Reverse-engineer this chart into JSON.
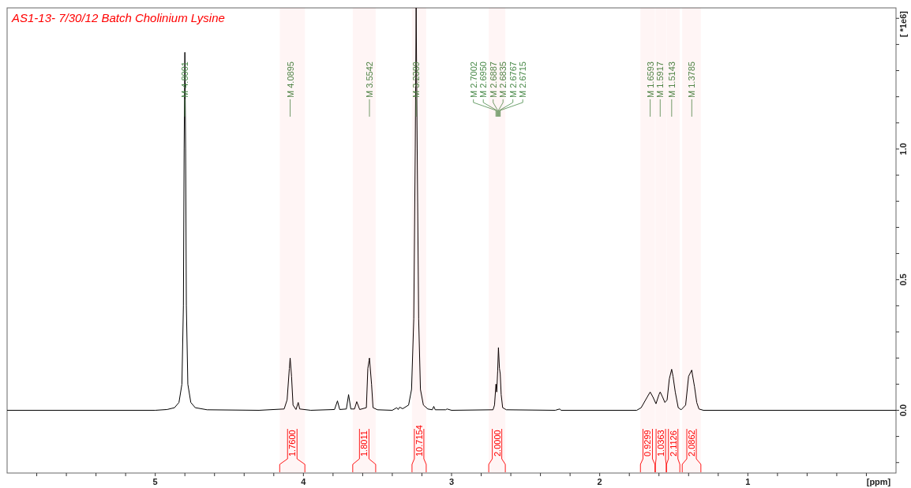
{
  "chart_data": {
    "type": "line",
    "title": "AS1-13-  7/30/12 Batch Cholinium Lysine",
    "xlabel": "[ppm]",
    "ylabel": "[ *1e6]",
    "xlim": [
      6.0,
      0.0
    ],
    "ylim": [
      -0.24,
      1.54
    ],
    "xticks": [
      {
        "value": 5.8,
        "label": null
      },
      {
        "value": 5.6,
        "label": null
      },
      {
        "value": 5.4,
        "label": null
      },
      {
        "value": 5.2,
        "label": null
      },
      5,
      {
        "value": 4.8,
        "label": null
      },
      {
        "value": 4.6,
        "label": null
      },
      {
        "value": 4.4,
        "label": null
      },
      {
        "value": 4.2,
        "label": null
      },
      4,
      {
        "value": 3.8,
        "label": null
      },
      {
        "value": 3.6,
        "label": null
      },
      {
        "value": 3.4,
        "label": null
      },
      {
        "value": 3.2,
        "label": null
      },
      3,
      {
        "value": 2.8,
        "label": null
      },
      {
        "value": 2.6,
        "label": null
      },
      {
        "value": 2.4,
        "label": null
      },
      {
        "value": 2.2,
        "label": null
      },
      2,
      {
        "value": 1.8,
        "label": null
      },
      {
        "value": 1.6,
        "label": null
      },
      {
        "value": 1.4,
        "label": null
      },
      {
        "value": 1.2,
        "label": null
      },
      1,
      {
        "value": 0.8,
        "label": null
      },
      {
        "value": 0.6,
        "label": null
      },
      {
        "value": 0.4,
        "label": null
      },
      {
        "value": 0.2,
        "label": null
      }
    ],
    "yticks": [
      {
        "value": -0.2,
        "label": null
      },
      {
        "value": -0.1,
        "label": null
      },
      {
        "value": 0,
        "label": "0.0"
      },
      {
        "value": 0.1,
        "label": null
      },
      {
        "value": 0.2,
        "label": null
      },
      {
        "value": 0.3,
        "label": null
      },
      {
        "value": 0.4,
        "label": null
      },
      {
        "value": 0.5,
        "label": "0.5"
      },
      {
        "value": 0.6,
        "label": null
      },
      {
        "value": 0.7,
        "label": null
      },
      {
        "value": 0.8,
        "label": null
      },
      {
        "value": 0.9,
        "label": null
      },
      {
        "value": 1.0,
        "label": "1.0"
      },
      {
        "value": 1.1,
        "label": null
      },
      {
        "value": 1.2,
        "label": null
      },
      {
        "value": 1.3,
        "label": null
      },
      {
        "value": 1.4,
        "label": null
      },
      {
        "value": 1.5,
        "label": null
      }
    ],
    "marker": "none",
    "line_style": "solid",
    "series": [
      {
        "color": "#000000",
        "x": [
          6.0,
          5.0,
          4.92,
          4.87,
          4.84,
          4.82,
          4.81,
          4.805,
          4.8001,
          4.795,
          4.79,
          4.78,
          4.76,
          4.73,
          4.65,
          4.3,
          4.13,
          4.11,
          4.095,
          4.0895,
          4.08,
          4.07,
          4.05,
          4.035,
          4.025,
          3.95,
          3.79,
          3.77,
          3.755,
          3.71,
          3.695,
          3.68,
          3.655,
          3.64,
          3.62,
          3.575,
          3.565,
          3.557,
          3.5542,
          3.54,
          3.53,
          3.5,
          3.4,
          3.37,
          3.36,
          3.35,
          3.33,
          3.29,
          3.27,
          3.255,
          3.245,
          3.2389,
          3.232,
          3.222,
          3.21,
          3.19,
          3.16,
          3.13,
          3.12,
          3.11,
          3.04,
          3.03,
          3.0,
          2.72,
          2.71,
          2.7002,
          2.695,
          2.6887,
          2.6835,
          2.6767,
          2.6715,
          2.665,
          2.655,
          2.63,
          2.3,
          2.27,
          2.26,
          1.75,
          1.72,
          1.68,
          1.6593,
          1.64,
          1.62,
          1.6,
          1.5917,
          1.575,
          1.56,
          1.545,
          1.53,
          1.5143,
          1.505,
          1.49,
          1.47,
          1.45,
          1.42,
          1.4,
          1.3785,
          1.375,
          1.36,
          1.345,
          1.33,
          1.3,
          0.0
        ],
        "values": [
          0,
          0,
          0.003,
          0.01,
          0.03,
          0.1,
          0.4,
          1.0,
          1.37,
          1.0,
          0.4,
          0.1,
          0.03,
          0.01,
          0.002,
          0,
          0.005,
          0.04,
          0.16,
          0.2,
          0.13,
          0.02,
          0.003,
          0.03,
          0.005,
          0,
          0.003,
          0.036,
          0.003,
          0.005,
          0.06,
          0.005,
          0.005,
          0.033,
          0.003,
          0.01,
          0.16,
          0.19,
          0.2,
          0.1,
          0.01,
          0.002,
          0,
          0.01,
          0.003,
          0.012,
          0.006,
          0.02,
          0.08,
          0.35,
          1.0,
          1.54,
          1.0,
          0.35,
          0.08,
          0.02,
          0.005,
          0.002,
          0.015,
          0.002,
          0.002,
          0.005,
          0,
          0.002,
          0.02,
          0.1,
          0.07,
          0.15,
          0.24,
          0.16,
          0.14,
          0.06,
          0.01,
          0.002,
          0,
          0.005,
          0,
          0,
          0.01,
          0.05,
          0.07,
          0.05,
          0.025,
          0.06,
          0.07,
          0.05,
          0.03,
          0.04,
          0.12,
          0.157,
          0.13,
          0.07,
          0.01,
          0.002,
          0.02,
          0.13,
          0.154,
          0.14,
          0.09,
          0.03,
          0.005,
          0,
          0
        ]
      }
    ],
    "annotations": [
      {
        "text": "M 4.8001",
        "x": 4.8001
      },
      {
        "text": "M 4.0895",
        "x": 4.0895
      },
      {
        "text": "M 3.5542",
        "x": 3.5542
      },
      {
        "text": "M 3.2389",
        "x": 3.2389
      },
      {
        "text": "M 2.7002",
        "x": 2.7002
      },
      {
        "text": "M 2.6950",
        "x": 2.695
      },
      {
        "text": "M 2.6887",
        "x": 2.6887
      },
      {
        "text": "M 2.6835",
        "x": 2.6835
      },
      {
        "text": "M 2.6767",
        "x": 2.6767
      },
      {
        "text": "M 2.6715",
        "x": 2.6715
      },
      {
        "text": "M 1.6593",
        "x": 1.6593
      },
      {
        "text": "M 1.5917",
        "x": 1.5917
      },
      {
        "text": "M 1.5143",
        "x": 1.5143
      },
      {
        "text": "M 1.3785",
        "x": 1.3785
      }
    ],
    "bands": [
      {
        "axis": "x",
        "from": 4.16,
        "to": 3.99,
        "label": "1.7600",
        "color": "#ff0000"
      },
      {
        "axis": "x",
        "from": 3.667,
        "to": 3.512,
        "label": "1.8011",
        "color": "#ff0000"
      },
      {
        "axis": "x",
        "from": 3.267,
        "to": 3.171,
        "label": "10.7154",
        "color": "#ff0000"
      },
      {
        "axis": "x",
        "from": 2.749,
        "to": 2.637,
        "label": "2.0000",
        "color": "#ff0000"
      },
      {
        "axis": "x",
        "from": 1.725,
        "to": 1.627,
        "label": "0.9299",
        "color": "#ff0000"
      },
      {
        "axis": "x",
        "from": 1.624,
        "to": 1.551,
        "label": "1.0363",
        "color": "#ff0000"
      },
      {
        "axis": "x",
        "from": 1.549,
        "to": 1.459,
        "label": "2.1126",
        "color": "#ff0000"
      },
      {
        "axis": "x",
        "from": 1.443,
        "to": 1.317,
        "label": "2.0862",
        "color": "#ff0000"
      }
    ]
  }
}
